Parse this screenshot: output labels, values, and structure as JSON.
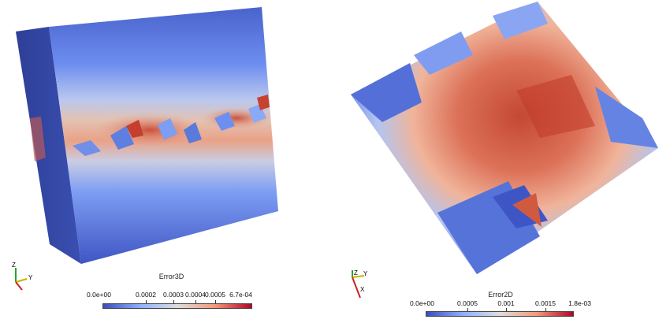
{
  "views": [
    {
      "id": "3d",
      "colorbar": {
        "title": "Error3D",
        "labels": [
          "0.0e+00",
          "0.0002",
          "0.0003",
          "0.0004",
          "0.0005",
          "6.7e-04"
        ],
        "min": 0,
        "max": 0.00067,
        "colormap": [
          "#3b4cc0",
          "#8db0fe",
          "#dddddd",
          "#f49a7b",
          "#b40426"
        ]
      },
      "axes": {
        "z": "Z",
        "y": "Y",
        "x": "X"
      }
    },
    {
      "id": "2d",
      "colorbar": {
        "title": "Error2D",
        "labels": [
          "0.0e+00",
          "0.0005",
          "0.001",
          "0.0015",
          "1.8e-03"
        ],
        "min": 0,
        "max": 0.0018,
        "colormap": [
          "#3b4cc0",
          "#8db0fe",
          "#dddddd",
          "#f49a7b",
          "#b40426"
        ]
      },
      "axes": {
        "z": "Z",
        "y": "Y",
        "x": "X"
      }
    }
  ]
}
